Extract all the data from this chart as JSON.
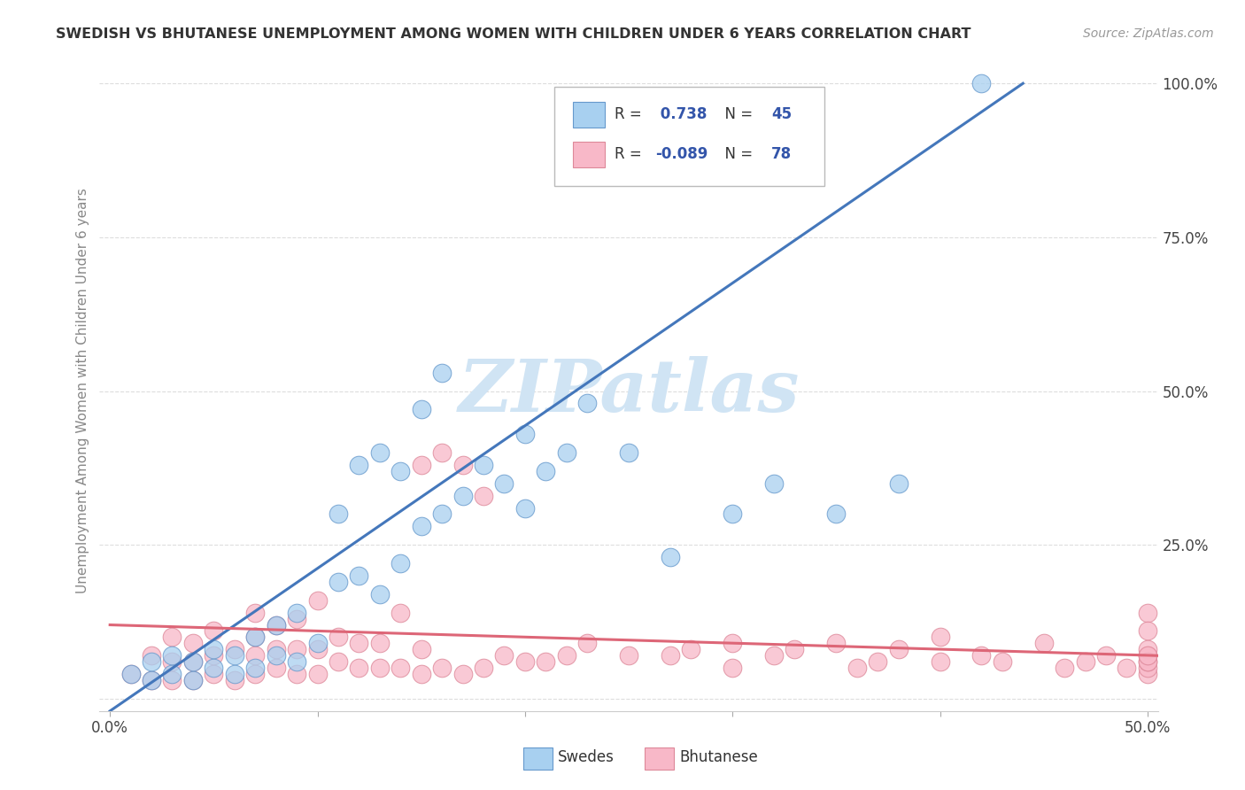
{
  "title": "SWEDISH VS BHUTANESE UNEMPLOYMENT AMONG WOMEN WITH CHILDREN UNDER 6 YEARS CORRELATION CHART",
  "source_text": "Source: ZipAtlas.com",
  "ylabel": "Unemployment Among Women with Children Under 6 years",
  "xlim": [
    -0.005,
    0.505
  ],
  "ylim": [
    -0.02,
    1.02
  ],
  "xticks": [
    0.0,
    0.1,
    0.2,
    0.3,
    0.4,
    0.5
  ],
  "xtick_labels": [
    "0.0%",
    "",
    "",
    "",
    "",
    "50.0%"
  ],
  "yticks": [
    0.0,
    0.25,
    0.5,
    0.75,
    1.0
  ],
  "ytick_labels": [
    "",
    "25.0%",
    "50.0%",
    "75.0%",
    "100.0%"
  ],
  "swedes_R": 0.738,
  "swedes_N": 45,
  "bhutanese_R": -0.089,
  "bhutanese_N": 78,
  "swede_color": "#A8D0F0",
  "bhutanese_color": "#F8B8C8",
  "swede_edge_color": "#6699CC",
  "bhutanese_edge_color": "#DD8899",
  "swede_line_color": "#4477BB",
  "bhutanese_line_color": "#DD6677",
  "watermark": "ZIPatlas",
  "watermark_color": "#D0E4F4",
  "background_color": "#FFFFFF",
  "grid_color": "#DDDDDD",
  "legend_color": "#3355AA",
  "swedes_x": [
    0.01,
    0.02,
    0.02,
    0.03,
    0.03,
    0.04,
    0.04,
    0.05,
    0.05,
    0.06,
    0.06,
    0.07,
    0.07,
    0.08,
    0.08,
    0.09,
    0.09,
    0.1,
    0.11,
    0.11,
    0.12,
    0.12,
    0.13,
    0.13,
    0.14,
    0.14,
    0.15,
    0.15,
    0.16,
    0.16,
    0.17,
    0.18,
    0.19,
    0.2,
    0.2,
    0.21,
    0.22,
    0.23,
    0.25,
    0.27,
    0.3,
    0.32,
    0.35,
    0.38,
    0.42
  ],
  "swedes_y": [
    0.04,
    0.03,
    0.06,
    0.04,
    0.07,
    0.03,
    0.06,
    0.05,
    0.08,
    0.04,
    0.07,
    0.05,
    0.1,
    0.07,
    0.12,
    0.06,
    0.14,
    0.09,
    0.19,
    0.3,
    0.2,
    0.38,
    0.17,
    0.4,
    0.22,
    0.37,
    0.47,
    0.28,
    0.53,
    0.3,
    0.33,
    0.38,
    0.35,
    0.43,
    0.31,
    0.37,
    0.4,
    0.48,
    0.4,
    0.23,
    0.3,
    0.35,
    0.3,
    0.35,
    1.0
  ],
  "bhutanese_x": [
    0.01,
    0.02,
    0.02,
    0.03,
    0.03,
    0.03,
    0.04,
    0.04,
    0.04,
    0.05,
    0.05,
    0.05,
    0.06,
    0.06,
    0.07,
    0.07,
    0.07,
    0.07,
    0.08,
    0.08,
    0.08,
    0.09,
    0.09,
    0.09,
    0.1,
    0.1,
    0.1,
    0.11,
    0.11,
    0.12,
    0.12,
    0.13,
    0.13,
    0.14,
    0.14,
    0.15,
    0.15,
    0.15,
    0.16,
    0.16,
    0.17,
    0.17,
    0.18,
    0.18,
    0.19,
    0.2,
    0.21,
    0.22,
    0.23,
    0.25,
    0.27,
    0.28,
    0.3,
    0.3,
    0.32,
    0.33,
    0.35,
    0.36,
    0.37,
    0.38,
    0.4,
    0.4,
    0.42,
    0.43,
    0.45,
    0.46,
    0.47,
    0.48,
    0.49,
    0.5,
    0.5,
    0.5,
    0.5,
    0.5,
    0.5,
    0.5,
    0.5,
    0.5
  ],
  "bhutanese_y": [
    0.04,
    0.03,
    0.07,
    0.03,
    0.06,
    0.1,
    0.03,
    0.06,
    0.09,
    0.04,
    0.07,
    0.11,
    0.03,
    0.08,
    0.04,
    0.07,
    0.1,
    0.14,
    0.05,
    0.08,
    0.12,
    0.04,
    0.08,
    0.13,
    0.04,
    0.08,
    0.16,
    0.06,
    0.1,
    0.05,
    0.09,
    0.05,
    0.09,
    0.05,
    0.14,
    0.04,
    0.08,
    0.38,
    0.05,
    0.4,
    0.04,
    0.38,
    0.05,
    0.33,
    0.07,
    0.06,
    0.06,
    0.07,
    0.09,
    0.07,
    0.07,
    0.08,
    0.05,
    0.09,
    0.07,
    0.08,
    0.09,
    0.05,
    0.06,
    0.08,
    0.06,
    0.1,
    0.07,
    0.06,
    0.09,
    0.05,
    0.06,
    0.07,
    0.05,
    0.04,
    0.05,
    0.06,
    0.07,
    0.08,
    0.06,
    0.07,
    0.14,
    0.11
  ],
  "swede_line_x0": 0.0,
  "swede_line_y0": -0.02,
  "swede_line_x1": 0.44,
  "swede_line_y1": 1.0,
  "bhuta_line_x0": 0.0,
  "bhuta_line_y0": 0.12,
  "bhuta_line_x1": 0.505,
  "bhuta_line_y1": 0.07
}
